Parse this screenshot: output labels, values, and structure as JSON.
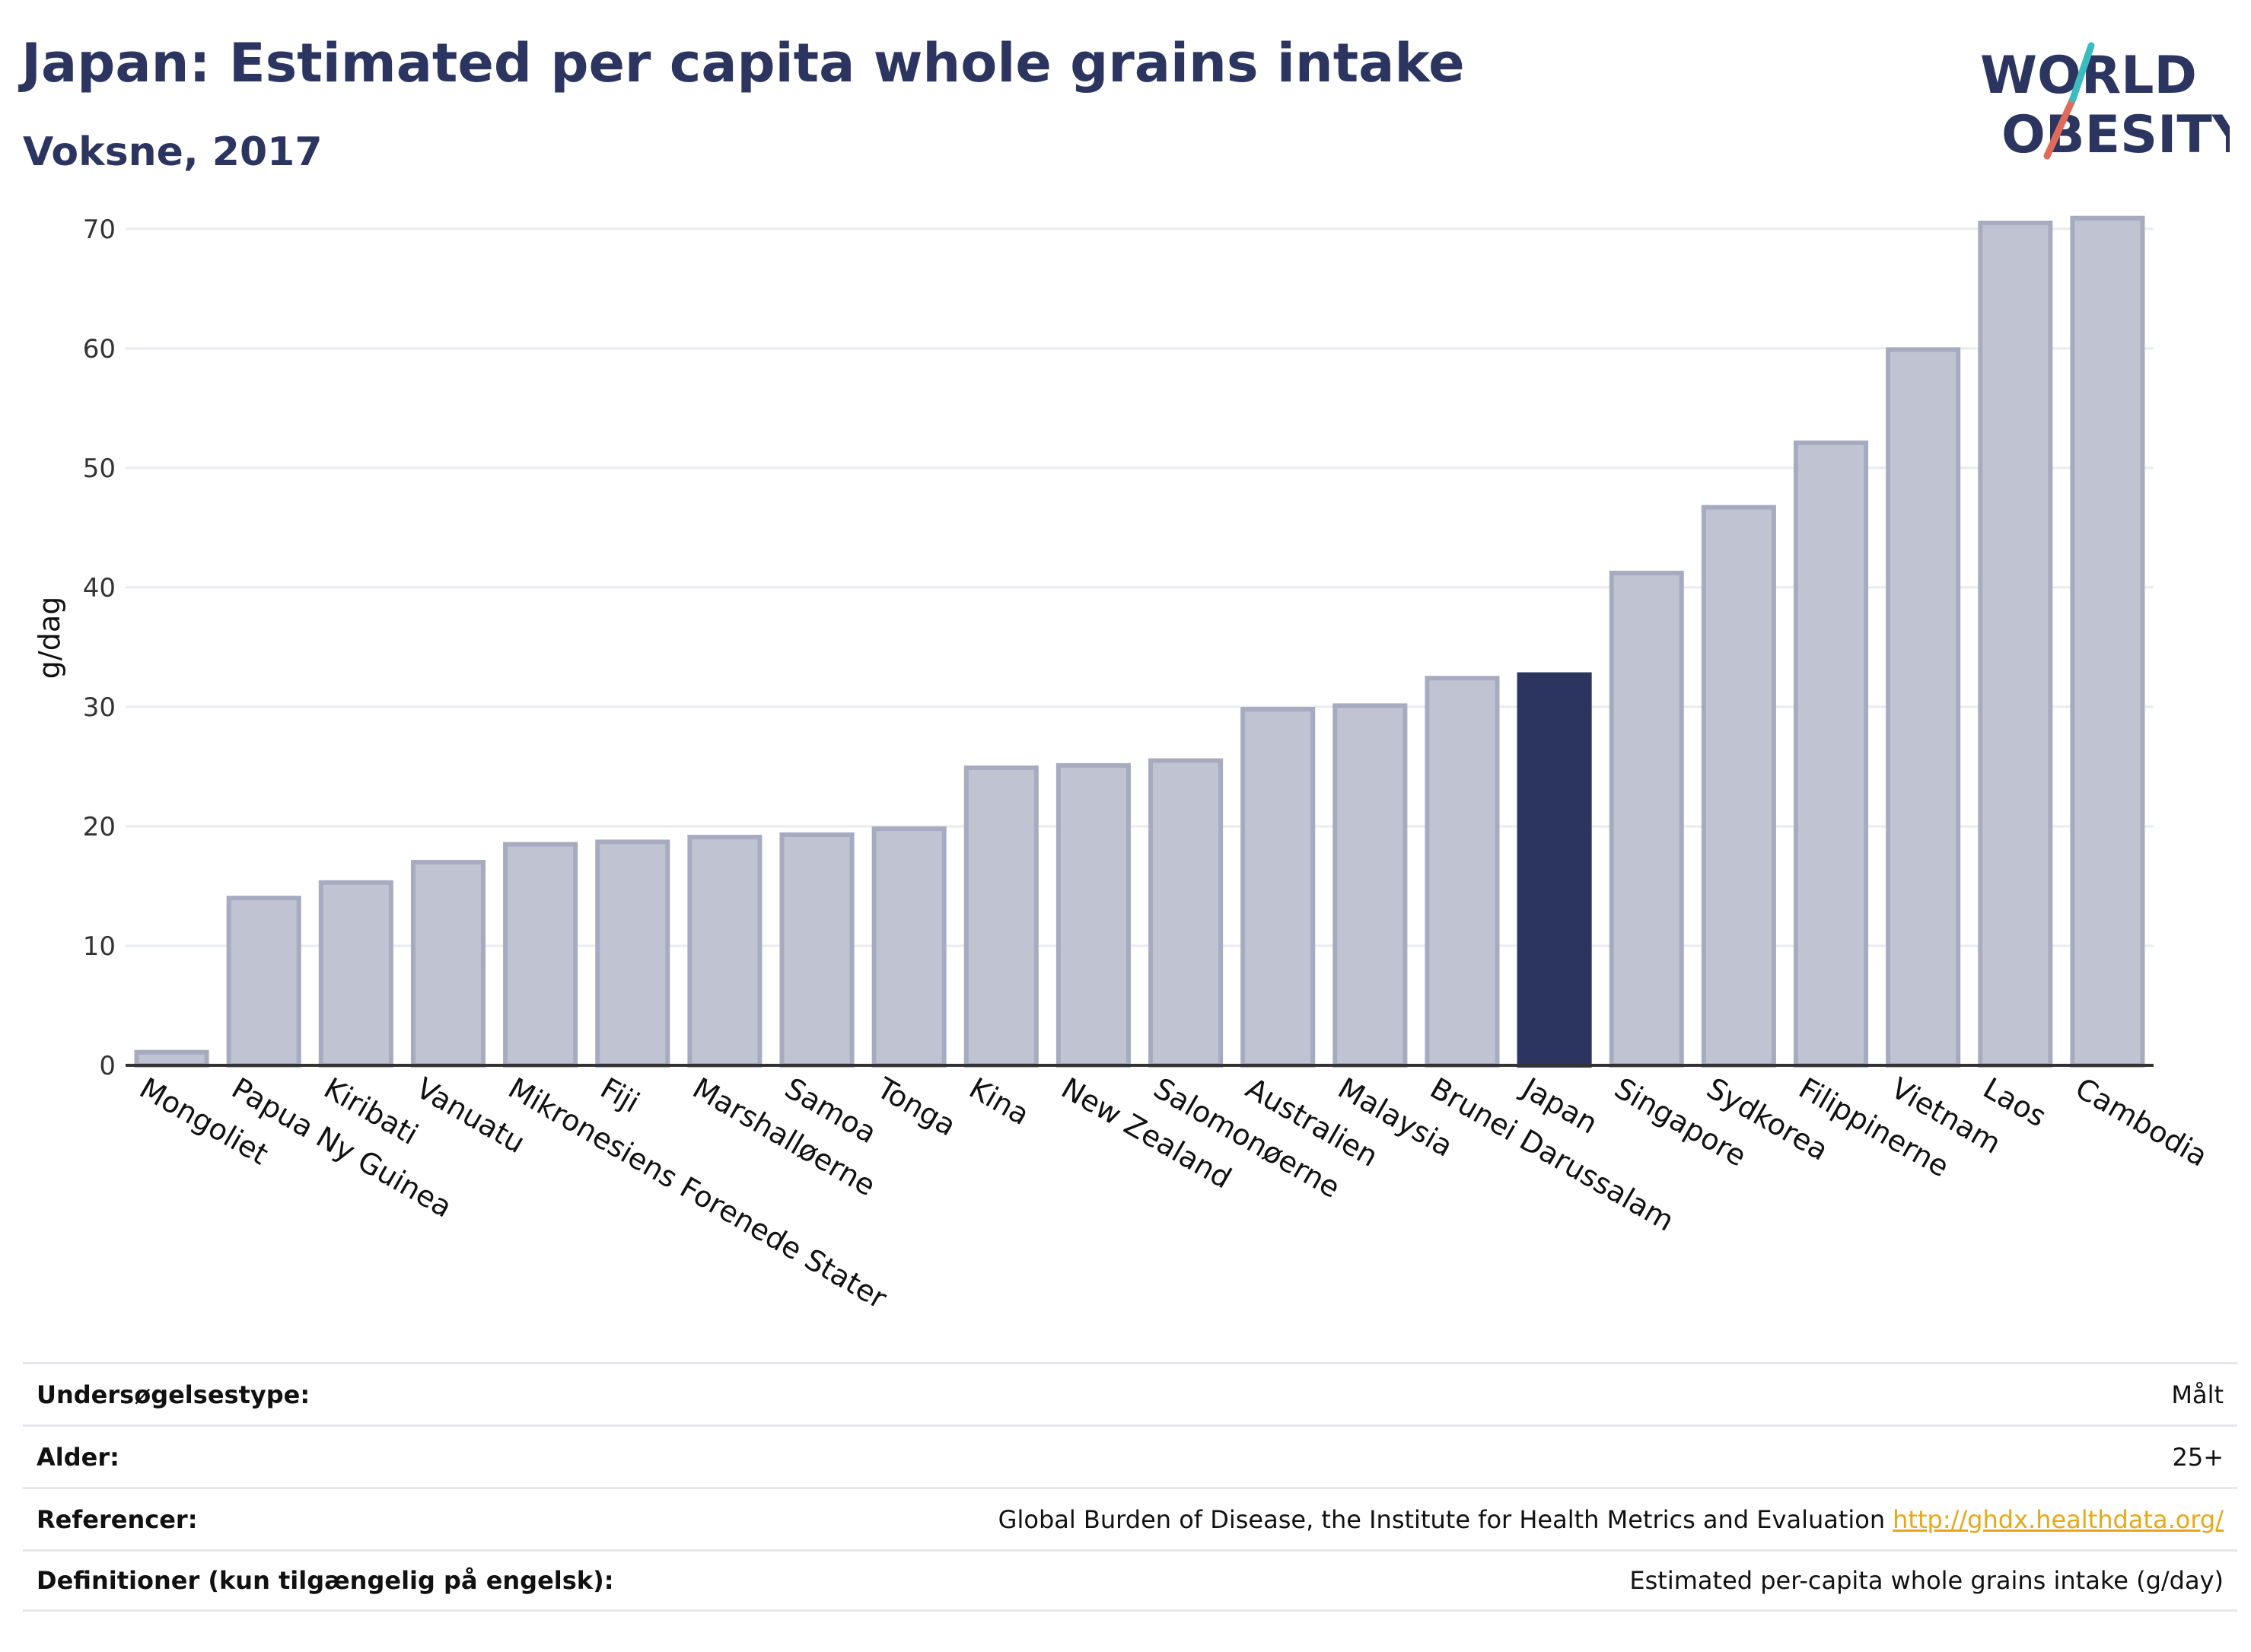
{
  "header": {
    "title": "Japan: Estimated per capita whole grains intake",
    "subtitle": "Voksne, 2017"
  },
  "logo": {
    "line1": "WORLD",
    "line2": "OBESITY",
    "colors": {
      "text": "#2b3560",
      "slash_red": "#e06b5a",
      "slash_teal": "#3bbcc0"
    }
  },
  "colors": {
    "bar_default": "#c0c4d2",
    "bar_default_stroke": "#a6abc0",
    "bar_highlight": "#2b3560",
    "grid": "#e9ebf0",
    "axis": "#333333"
  },
  "chart_data": {
    "type": "bar",
    "ylabel": "g/dag",
    "ylim": [
      0,
      74
    ],
    "yticks": [
      0,
      10,
      20,
      30,
      40,
      50,
      60,
      70
    ],
    "grid": true,
    "highlight": "Japan",
    "categories": [
      "Mongoliet",
      "Papua Ny Guinea",
      "Kiribati",
      "Vanuatu",
      "Mikronesiens Forenede Stater",
      "Fiji",
      "Marshalløerne",
      "Samoa",
      "Tonga",
      "Kina",
      "New Zealand",
      "Salomonøerne",
      "Australien",
      "Malaysia",
      "Brunei Darussalam",
      "Japan",
      "Singapore",
      "Sydkorea",
      "Filippinerne",
      "Vietnam",
      "Laos",
      "Cambodia"
    ],
    "values": [
      1.1,
      14.0,
      15.3,
      17.0,
      18.5,
      18.7,
      19.1,
      19.3,
      19.8,
      24.9,
      25.1,
      25.5,
      29.8,
      30.1,
      32.4,
      32.7,
      41.2,
      46.7,
      52.1,
      59.9,
      70.5,
      70.9
    ]
  },
  "info": {
    "rows": [
      {
        "label": "Undersøgelsestype:",
        "value": "Målt"
      },
      {
        "label": "Alder:",
        "value": "25+"
      },
      {
        "label": "Referencer:",
        "value": "Global Burden of Disease, the Institute for Health Metrics and Evaluation",
        "link": "http://ghdx.healthdata.org/"
      },
      {
        "label": "Definitioner (kun tilgængelig på engelsk):",
        "value": "Estimated per-capita whole grains intake (g/day)"
      }
    ]
  }
}
